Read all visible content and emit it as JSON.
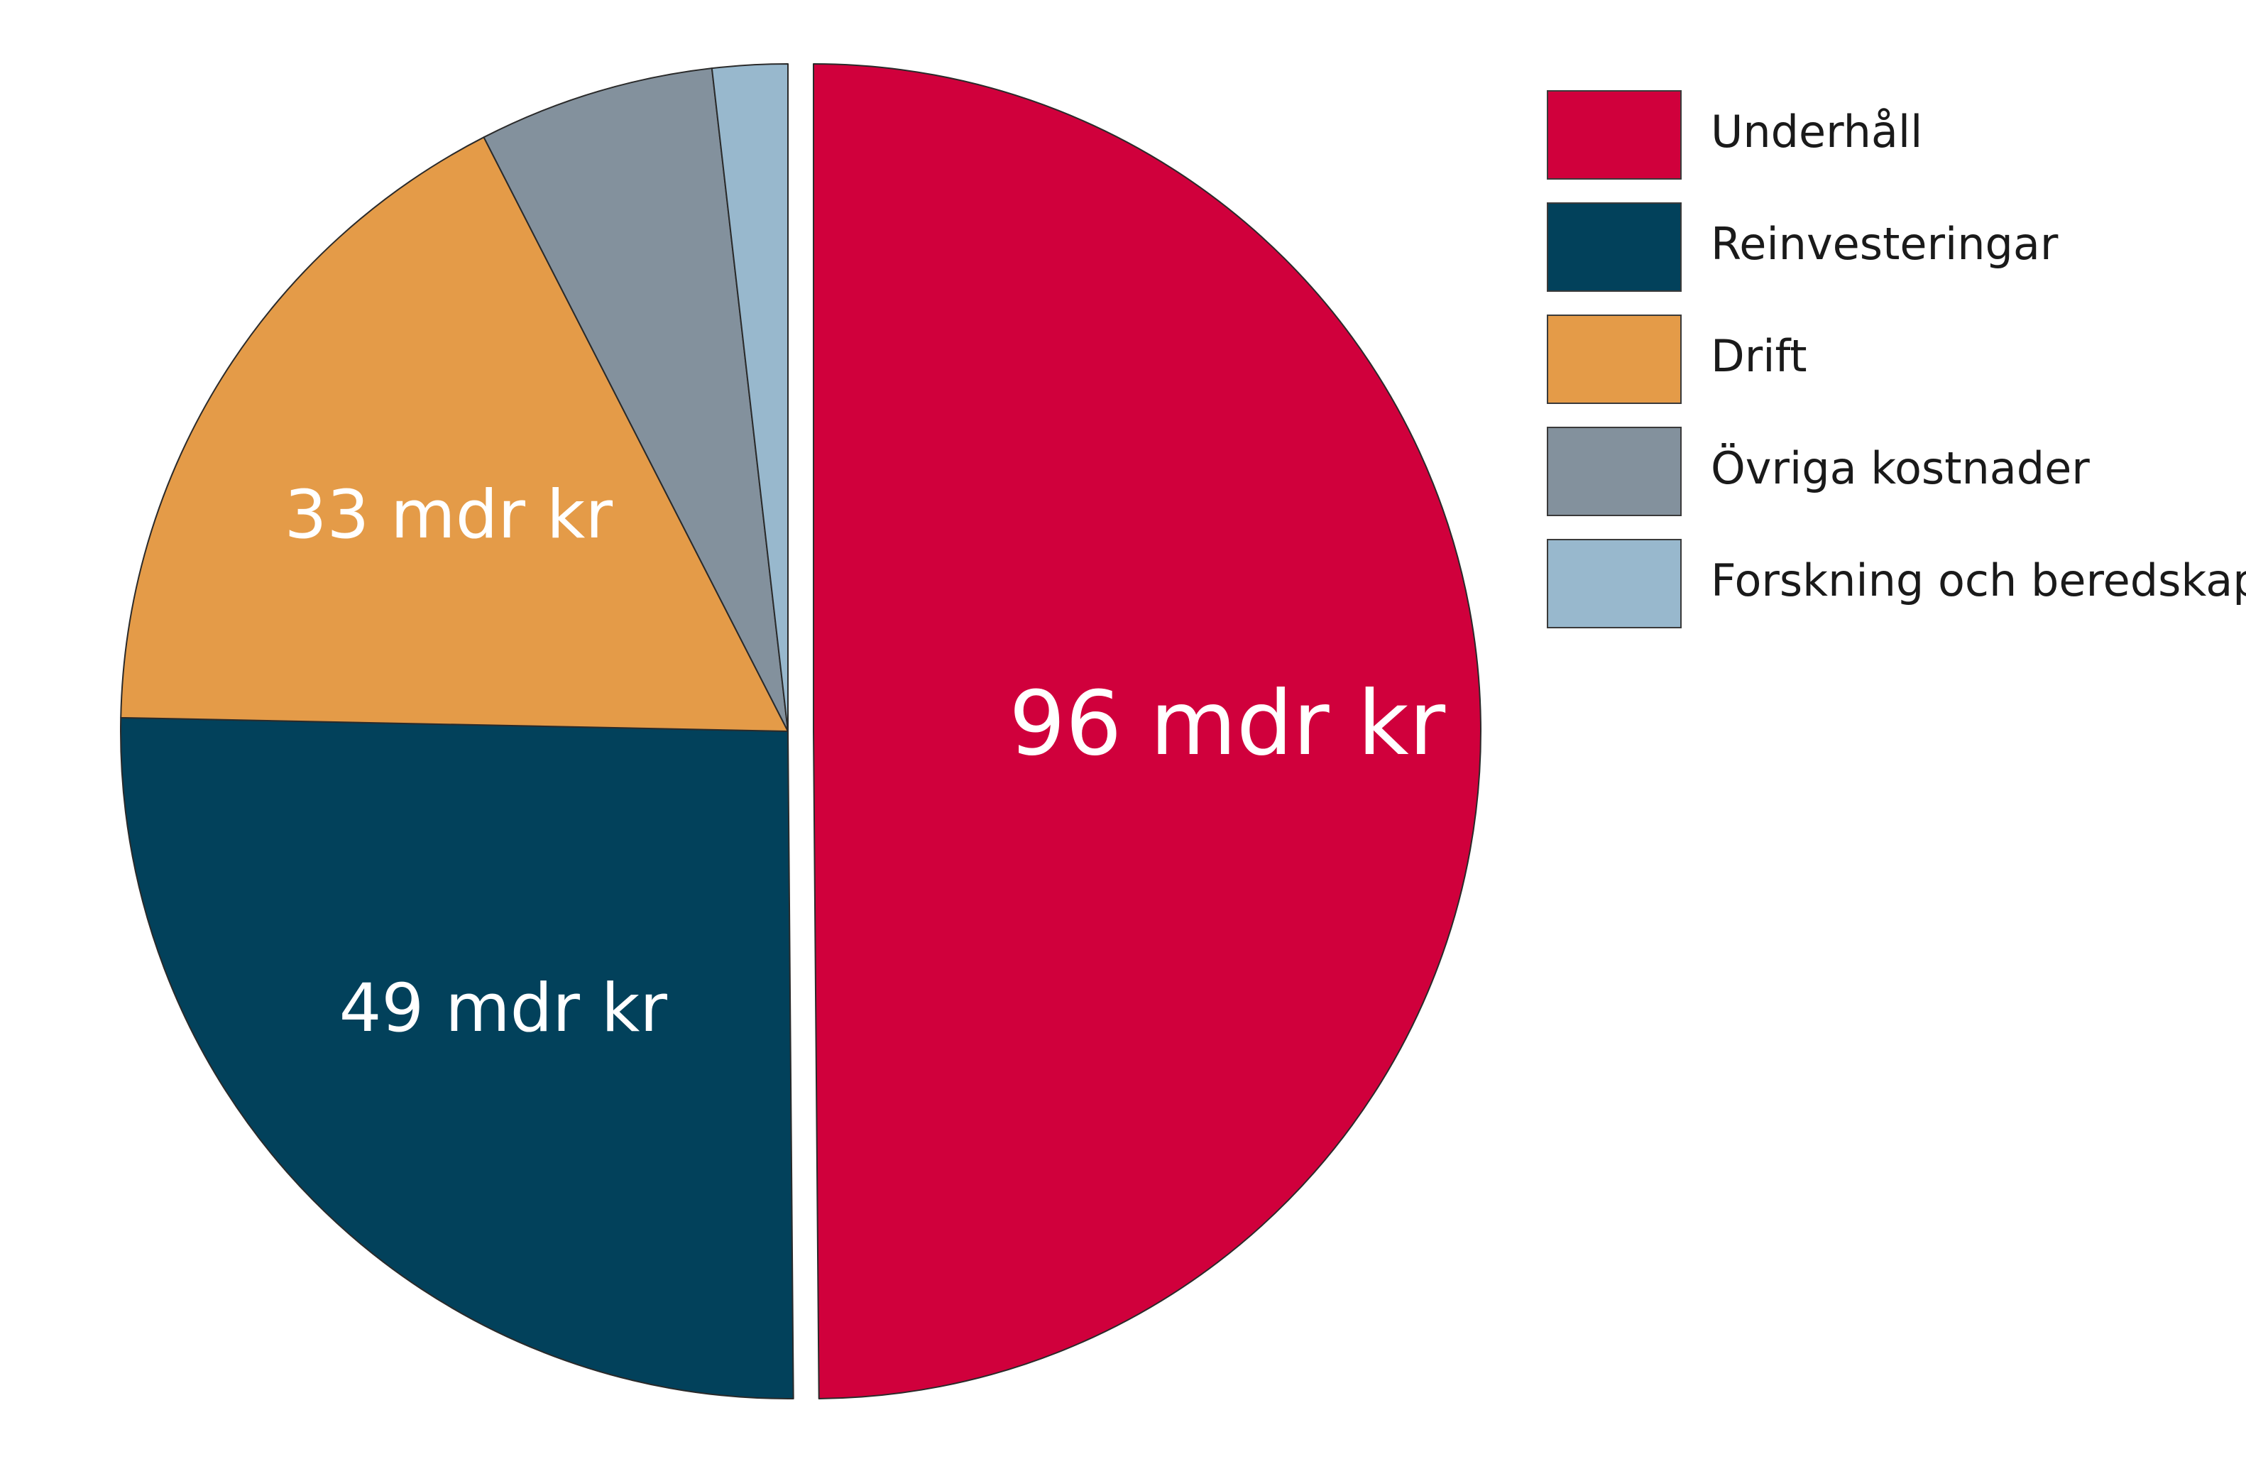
{
  "chart_data": {
    "type": "pie",
    "categories": [
      "Underhåll",
      "Reinvesteringar",
      "Drift",
      "Övriga kostnader",
      "Forskning och beredskap"
    ],
    "values": [
      96,
      49,
      33,
      11,
      3.5
    ],
    "series": [
      {
        "name": "Underhåll",
        "value": 96,
        "label": "96 mdr kr",
        "color": "#d0003c",
        "exploded": true
      },
      {
        "name": "Reinvesteringar",
        "value": 49,
        "label": "49 mdr kr",
        "color": "#02415b"
      },
      {
        "name": "Drift",
        "value": 33,
        "label": "33 mdr kr",
        "color": "#e49b48"
      },
      {
        "name": "Övriga kostnader",
        "value": 11,
        "label": "",
        "color": "#83919d"
      },
      {
        "name": "Forskning och beredskap",
        "value": 3.5,
        "label": "",
        "color": "#98b8cd"
      }
    ],
    "legend": {
      "position": "top-right",
      "entries": [
        "Underhåll",
        "Reinvesteringar",
        "Drift",
        "Övriga kostnader",
        "Forskning och beredskap"
      ]
    },
    "title": ""
  }
}
